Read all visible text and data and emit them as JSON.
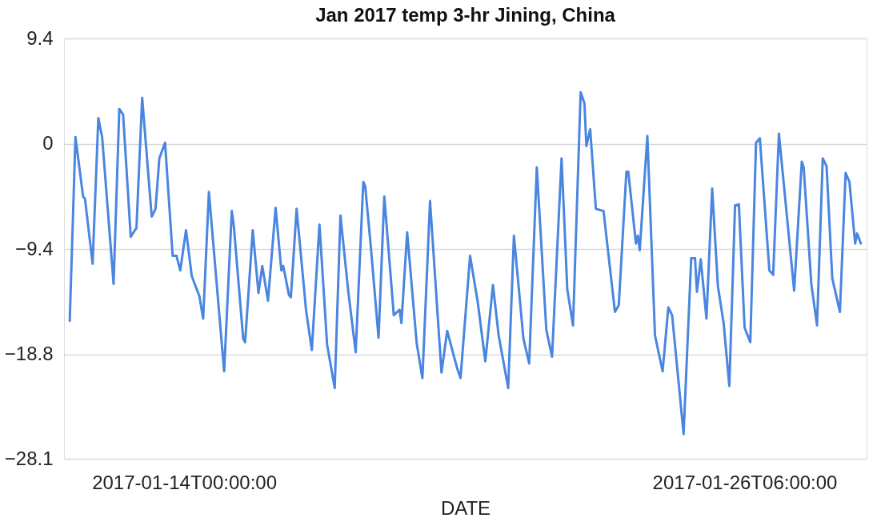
{
  "chart_data": {
    "type": "line",
    "title": "Jan 2017 temp 3-hr Jining, China",
    "xlabel": "DATE",
    "x": [
      "2017-01-11T12:00",
      "2017-01-11T15:00",
      "2017-01-11T19:00",
      "2017-01-11T20:00",
      "2017-01-12T00:00",
      "2017-01-12T03:00",
      "2017-01-12T05:00",
      "2017-01-12T11:00",
      "2017-01-12T14:00",
      "2017-01-12T16:00",
      "2017-01-12T20:00",
      "2017-01-12T23:00",
      "2017-01-13T02:00",
      "2017-01-13T07:00",
      "2017-01-13T09:00",
      "2017-01-13T11:00",
      "2017-01-13T14:00",
      "2017-01-13T18:00",
      "2017-01-13T20:00",
      "2017-01-13T22:00",
      "2017-01-14T01:00",
      "2017-01-14T04:00",
      "2017-01-14T08:00",
      "2017-01-14T10:00",
      "2017-01-14T13:00",
      "2017-01-14T21:00",
      "2017-01-15T01:00",
      "2017-01-15T02:00",
      "2017-01-15T07:00",
      "2017-01-15T08:00",
      "2017-01-15T12:00",
      "2017-01-15T15:00",
      "2017-01-15T17:00",
      "2017-01-15T20:00",
      "2017-01-16T00:00",
      "2017-01-16T03:00",
      "2017-01-16T04:00",
      "2017-01-16T07:00",
      "2017-01-16T08:00",
      "2017-01-16T11:00",
      "2017-01-16T16:00",
      "2017-01-16T19:00",
      "2017-01-16T23:00",
      "2017-01-17T03:00",
      "2017-01-17T07:00",
      "2017-01-17T10:00",
      "2017-01-17T14:00",
      "2017-01-17T18:00",
      "2017-01-17T22:00",
      "2017-01-17T23:00",
      "2017-01-18T02:00",
      "2017-01-18T06:00",
      "2017-01-18T09:00",
      "2017-01-18T14:00",
      "2017-01-18T17:00",
      "2017-01-18T18:00",
      "2017-01-18T21:00",
      "2017-01-19T02:00",
      "2017-01-19T05:00",
      "2017-01-19T09:00",
      "2017-01-19T15:00",
      "2017-01-19T18:00",
      "2017-01-19T23:00",
      "2017-01-20T01:00",
      "2017-01-20T06:00",
      "2017-01-20T10:00",
      "2017-01-20T14:00",
      "2017-01-20T18:00",
      "2017-01-20T21:00",
      "2017-01-21T02:00",
      "2017-01-21T05:00",
      "2017-01-21T10:00",
      "2017-01-21T13:00",
      "2017-01-21T17:00",
      "2017-01-21T22:00",
      "2017-01-22T01:00",
      "2017-01-22T06:00",
      "2017-01-22T09:00",
      "2017-01-22T12:00",
      "2017-01-22T16:00",
      "2017-01-22T18:00",
      "2017-01-22T19:00",
      "2017-01-22T21:00",
      "2017-01-23T00:00",
      "2017-01-23T04:00",
      "2017-01-23T10:00",
      "2017-01-23T12:00",
      "2017-01-23T16:00",
      "2017-01-23T17:00",
      "2017-01-23T21:00",
      "2017-01-23T22:00",
      "2017-01-23T23:00",
      "2017-01-24T03:00",
      "2017-01-24T07:00",
      "2017-01-24T11:00",
      "2017-01-24T14:00",
      "2017-01-24T16:00",
      "2017-01-24T22:00",
      "2017-01-25T02:00",
      "2017-01-25T04:00",
      "2017-01-25T05:00",
      "2017-01-25T07:00",
      "2017-01-25T10:00",
      "2017-01-25T13:00",
      "2017-01-25T16:00",
      "2017-01-25T19:00",
      "2017-01-25T22:00",
      "2017-01-26T01:00",
      "2017-01-26T03:00",
      "2017-01-26T06:00",
      "2017-01-26T09:00",
      "2017-01-26T12:00",
      "2017-01-26T14:00",
      "2017-01-26T19:00",
      "2017-01-26T21:00",
      "2017-01-27T00:00",
      "2017-01-27T08:00",
      "2017-01-27T12:00",
      "2017-01-27T13:00",
      "2017-01-27T17:00",
      "2017-01-27T20:00",
      "2017-01-27T23:00",
      "2017-01-28T01:00",
      "2017-01-28T04:00",
      "2017-01-28T08:00",
      "2017-01-28T11:00",
      "2017-01-28T13:00",
      "2017-01-28T16:00",
      "2017-01-28T17:00",
      "2017-01-28T19:00"
    ],
    "series": [
      {
        "color": "#4a86e0",
        "values": [
          -15.8,
          0.6,
          -4.7,
          -4.9,
          -10.7,
          2.3,
          0.6,
          -12.5,
          3.1,
          2.6,
          -8.3,
          -7.5,
          4.1,
          -6.5,
          -5.8,
          -1.3,
          0.1,
          -10.0,
          -10.0,
          -11.3,
          -7.7,
          -11.8,
          -13.6,
          -15.6,
          -4.3,
          -20.3,
          -6.0,
          -7.2,
          -17.4,
          -17.7,
          -7.7,
          -13.3,
          -10.9,
          -14.0,
          -5.7,
          -11.3,
          -10.9,
          -13.5,
          -13.7,
          -5.8,
          -14.9,
          -18.4,
          -7.2,
          -17.9,
          -21.8,
          -6.4,
          -13.0,
          -18.6,
          -3.4,
          -3.8,
          -9.3,
          -17.3,
          -4.7,
          -15.3,
          -14.8,
          -16.0,
          -7.9,
          -17.8,
          -20.9,
          -5.1,
          -20.4,
          -16.7,
          -19.9,
          -20.9,
          -10.0,
          -14.1,
          -19.4,
          -12.6,
          -17.1,
          -21.8,
          -8.2,
          -17.4,
          -19.6,
          -2.1,
          -16.6,
          -19.0,
          -1.3,
          -13.0,
          -16.2,
          4.6,
          3.6,
          -0.2,
          1.3,
          -5.8,
          -6.0,
          -15.0,
          -14.4,
          -2.5,
          -2.5,
          -8.9,
          -8.2,
          -9.5,
          0.7,
          -17.1,
          -20.3,
          -14.6,
          -15.3,
          -25.9,
          -10.2,
          -10.2,
          -13.2,
          -10.3,
          -15.6,
          -4.0,
          -12.7,
          -16.0,
          -21.6,
          -5.5,
          -5.4,
          -16.4,
          -17.7,
          0.1,
          0.5,
          -11.3,
          -11.7,
          0.9,
          -13.1,
          -1.6,
          -2.1,
          -12.5,
          -16.2,
          -1.3,
          -2.0,
          -12.0,
          -15.0,
          -2.6,
          -3.4,
          -8.9,
          -8.0,
          -8.9
        ]
      }
    ],
    "xlim": [
      "2017-01-11T09:00",
      "2017-01-28T22:00"
    ],
    "xticks": [
      {
        "value": "2017-01-14T00:00",
        "label": "2017-01-14T00:00:00"
      },
      {
        "value": "2017-01-26T06:00",
        "label": "2017-01-26T06:00:00"
      }
    ],
    "ylim": [
      -28.1,
      9.4
    ],
    "yticks": [
      -28.1,
      -18.8,
      -9.4,
      0,
      9.4
    ],
    "grid": "y",
    "line_style": "solid"
  }
}
